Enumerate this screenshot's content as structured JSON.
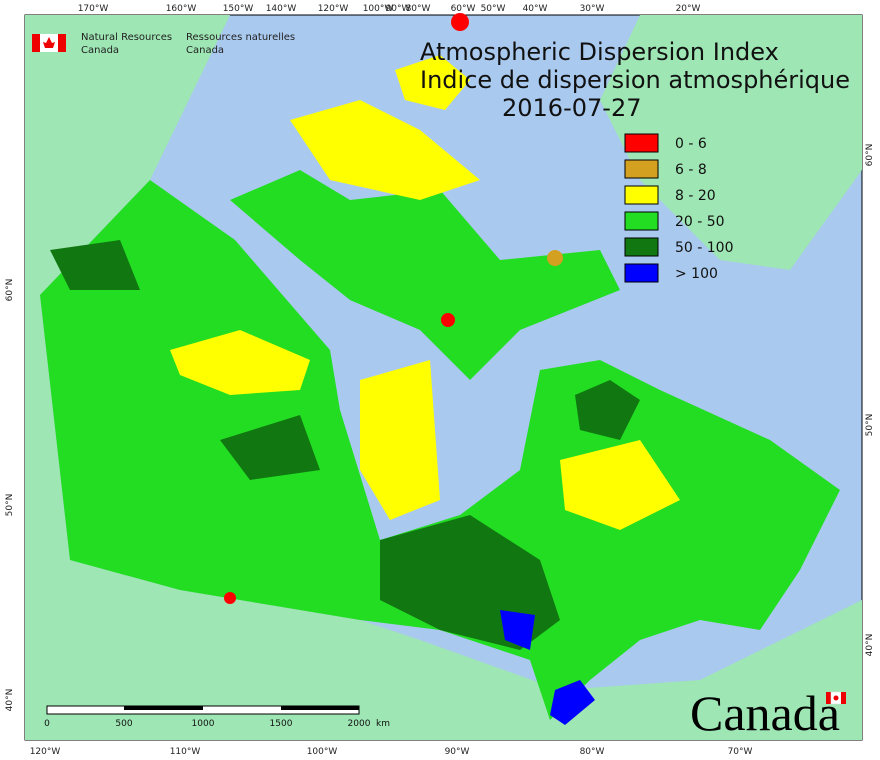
{
  "header": {
    "title_en": "Atmospheric Dispersion Index",
    "title_fr": "Indice de dispersion atmosphérique",
    "date": "2016-07-27"
  },
  "agency": {
    "en": [
      "Natural Resources",
      "Canada"
    ],
    "fr": [
      "Ressources naturelles",
      "Canada"
    ]
  },
  "legend": [
    {
      "label": "0 - 6",
      "color": "#ff0000"
    },
    {
      "label": "6 - 8",
      "color": "#d4a020"
    },
    {
      "label": "8 - 20",
      "color": "#ffff00"
    },
    {
      "label": "20 - 50",
      "color": "#22dd22"
    },
    {
      "label": "50 - 100",
      "color": "#117711"
    },
    {
      "label": "> 100",
      "color": "#0000ff"
    }
  ],
  "graticule": {
    "top": [
      "170°W",
      "160°W",
      "150°W",
      "140°W",
      "120°W",
      "100°W",
      "90°W",
      "80°W",
      "60°W",
      "50°W",
      "40°W",
      "30°W",
      "20°W"
    ],
    "bottom": [
      "120°W",
      "110°W",
      "100°W",
      "90°W",
      "80°W",
      "70°W"
    ],
    "left": [
      "60°N",
      "50°N",
      "40°N"
    ],
    "right": [
      "60°N",
      "50°N",
      "40°N"
    ]
  },
  "scale_bar": {
    "labels": [
      "0",
      "500",
      "1000",
      "1500",
      "2000"
    ],
    "unit": "km"
  },
  "wordmark": "Canada"
}
